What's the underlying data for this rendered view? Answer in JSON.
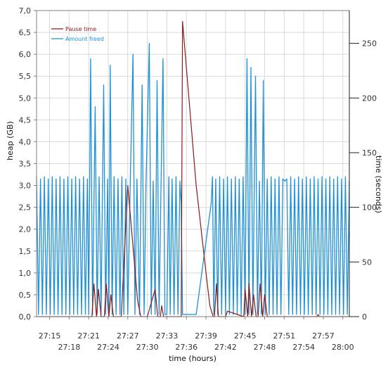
{
  "colors": {
    "pause": "#8b1a1a",
    "freed": "#1e90d6",
    "grid": "#d9d9d9",
    "frame": "#808080"
  },
  "chart_data": {
    "type": "line",
    "title": "",
    "xlabel": "time (hours)",
    "ylabel_left": "heap (GB)",
    "ylabel_right": "time (seconds)",
    "x_ticks_top_row": [
      "27:15",
      "27:21",
      "27:27",
      "27:33",
      "27:39",
      "27:45",
      "27:51",
      "27:57"
    ],
    "x_ticks_bottom_row": [
      "27:18",
      "27:24",
      "27:30",
      "27:36",
      "27:42",
      "27:48",
      "27:54",
      "28:00"
    ],
    "x_range_minutes": [
      1633,
      1681
    ],
    "y_left_ticks": [
      "0,0",
      "0,5",
      "1,0",
      "1,5",
      "2,0",
      "2,5",
      "3,0",
      "3,5",
      "4,0",
      "4,5",
      "5,0",
      "5,5",
      "6,0",
      "6,5",
      "7,0"
    ],
    "y_left_range": [
      0,
      7
    ],
    "y_right_ticks": [
      "0",
      "50",
      "100",
      "150",
      "200",
      "250"
    ],
    "y_right_range": [
      0,
      280
    ],
    "grid": true,
    "legend_position": "top-left",
    "series": [
      {
        "name": "Pause time",
        "axis": "right",
        "points": [
          [
            1633.0,
            0
          ],
          [
            1637.6,
            0
          ],
          [
            1641.5,
            0
          ],
          [
            1641.8,
            30
          ],
          [
            1642.2,
            0
          ],
          [
            1642.5,
            25
          ],
          [
            1642.9,
            0
          ],
          [
            1643.4,
            0
          ],
          [
            1643.7,
            30
          ],
          [
            1644.1,
            0
          ],
          [
            1644.4,
            20
          ],
          [
            1644.8,
            0
          ],
          [
            1646.0,
            0
          ],
          [
            1647.0,
            120
          ],
          [
            1648.5,
            15
          ],
          [
            1649.0,
            0
          ],
          [
            1650.0,
            0
          ],
          [
            1651.2,
            25
          ],
          [
            1651.6,
            0
          ],
          [
            1652.0,
            0
          ],
          [
            1652.2,
            10
          ],
          [
            1652.5,
            0
          ],
          [
            1653.0,
            0
          ],
          [
            1653.5,
            0
          ],
          [
            1655.2,
            0
          ],
          [
            1655.4,
            270
          ],
          [
            1657.5,
            120
          ],
          [
            1659.2,
            30
          ],
          [
            1659.6,
            10
          ],
          [
            1660.1,
            0
          ],
          [
            1660.3,
            0
          ],
          [
            1660.6,
            30
          ],
          [
            1660.9,
            0
          ],
          [
            1662.0,
            0
          ],
          [
            1662.3,
            5
          ],
          [
            1664.8,
            0
          ],
          [
            1665.0,
            25
          ],
          [
            1665.4,
            0
          ],
          [
            1665.6,
            30
          ],
          [
            1666.0,
            0
          ],
          [
            1666.3,
            20
          ],
          [
            1666.7,
            0
          ],
          [
            1667.0,
            0
          ],
          [
            1667.3,
            30
          ],
          [
            1667.7,
            0
          ],
          [
            1668.0,
            20
          ],
          [
            1668.4,
            0
          ],
          [
            1676.0,
            0
          ],
          [
            1676.2,
            2
          ],
          [
            1676.4,
            0
          ],
          [
            1681.0,
            0
          ]
        ]
      },
      {
        "name": "Amount freed",
        "axis": "left",
        "points": [
          [
            1633.0,
            3.2
          ],
          [
            1633.3,
            0.05
          ],
          [
            1633.6,
            3.15
          ],
          [
            1633.9,
            0.05
          ],
          [
            1634.2,
            3.2
          ],
          [
            1634.5,
            0.05
          ],
          [
            1634.8,
            3.15
          ],
          [
            1635.1,
            0.05
          ],
          [
            1635.4,
            3.2
          ],
          [
            1635.7,
            0.05
          ],
          [
            1636.0,
            3.15
          ],
          [
            1636.3,
            0.05
          ],
          [
            1636.6,
            3.2
          ],
          [
            1636.9,
            0.05
          ],
          [
            1637.2,
            3.15
          ],
          [
            1637.5,
            0.05
          ],
          [
            1637.8,
            3.2
          ],
          [
            1638.1,
            0.05
          ],
          [
            1638.4,
            3.15
          ],
          [
            1638.7,
            0.05
          ],
          [
            1639.0,
            3.2
          ],
          [
            1639.3,
            0.05
          ],
          [
            1639.6,
            3.15
          ],
          [
            1639.9,
            0.05
          ],
          [
            1640.2,
            3.2
          ],
          [
            1640.5,
            0.05
          ],
          [
            1640.8,
            3.15
          ],
          [
            1641.0,
            0.05
          ],
          [
            1641.3,
            5.9
          ],
          [
            1641.6,
            0.05
          ],
          [
            1642.0,
            4.8
          ],
          [
            1642.3,
            0.05
          ],
          [
            1642.6,
            3.2
          ],
          [
            1642.9,
            0.05
          ],
          [
            1643.3,
            5.3
          ],
          [
            1643.6,
            0.05
          ],
          [
            1643.9,
            3.15
          ],
          [
            1644.1,
            0.05
          ],
          [
            1644.3,
            5.75
          ],
          [
            1644.6,
            0.05
          ],
          [
            1644.9,
            3.2
          ],
          [
            1645.2,
            0.05
          ],
          [
            1645.5,
            3.15
          ],
          [
            1645.8,
            0.05
          ],
          [
            1646.1,
            3.2
          ],
          [
            1646.4,
            0.05
          ],
          [
            1646.7,
            3.15
          ],
          [
            1647.0,
            0.05
          ],
          [
            1647.4,
            3.2
          ],
          [
            1647.8,
            6.0
          ],
          [
            1648.1,
            0.05
          ],
          [
            1648.4,
            3.15
          ],
          [
            1648.8,
            0.05
          ],
          [
            1649.2,
            5.3
          ],
          [
            1649.5,
            0.05
          ],
          [
            1649.8,
            3.0
          ],
          [
            1650.3,
            6.25
          ],
          [
            1650.6,
            0.05
          ],
          [
            1650.9,
            3.1
          ],
          [
            1651.2,
            0.05
          ],
          [
            1651.5,
            5.4
          ],
          [
            1651.8,
            0.05
          ],
          [
            1652.1,
            3.0
          ],
          [
            1652.4,
            5.9
          ],
          [
            1652.7,
            0.05
          ],
          [
            1653.0,
            0.05
          ],
          [
            1653.3,
            3.2
          ],
          [
            1653.5,
            0.05
          ],
          [
            1653.8,
            3.15
          ],
          [
            1654.1,
            0.05
          ],
          [
            1654.4,
            3.2
          ],
          [
            1654.7,
            0.05
          ],
          [
            1655.0,
            3.1
          ],
          [
            1655.2,
            2.6
          ],
          [
            1655.4,
            0.05
          ],
          [
            1657.5,
            0.05
          ],
          [
            1659.8,
            2.6
          ],
          [
            1660.0,
            3.2
          ],
          [
            1660.2,
            0.05
          ],
          [
            1660.5,
            3.15
          ],
          [
            1660.8,
            0.05
          ],
          [
            1661.1,
            3.2
          ],
          [
            1661.4,
            0.05
          ],
          [
            1661.7,
            3.15
          ],
          [
            1662.0,
            0.05
          ],
          [
            1662.3,
            3.2
          ],
          [
            1662.6,
            0.05
          ],
          [
            1662.9,
            3.15
          ],
          [
            1663.2,
            0.05
          ],
          [
            1663.5,
            3.2
          ],
          [
            1663.8,
            0.05
          ],
          [
            1664.1,
            3.15
          ],
          [
            1664.4,
            0.05
          ],
          [
            1664.7,
            3.2
          ],
          [
            1665.0,
            0.05
          ],
          [
            1665.3,
            5.9
          ],
          [
            1665.6,
            0.05
          ],
          [
            1665.9,
            5.7
          ],
          [
            1666.2,
            0.05
          ],
          [
            1666.6,
            5.5
          ],
          [
            1666.9,
            0.05
          ],
          [
            1667.2,
            3.1
          ],
          [
            1667.5,
            0.05
          ],
          [
            1667.8,
            5.4
          ],
          [
            1668.1,
            0.05
          ],
          [
            1668.4,
            3.15
          ],
          [
            1668.7,
            0.05
          ],
          [
            1669.0,
            3.2
          ],
          [
            1669.3,
            0.05
          ],
          [
            1669.6,
            3.15
          ],
          [
            1669.9,
            0.05
          ],
          [
            1670.2,
            3.2
          ],
          [
            1670.5,
            0.05
          ],
          [
            1670.8,
            3.15
          ],
          [
            1671.1,
            3.1
          ],
          [
            1671.4,
            3.15
          ],
          [
            1671.7,
            0.05
          ],
          [
            1672.0,
            3.2
          ],
          [
            1672.3,
            0.05
          ],
          [
            1672.6,
            3.15
          ],
          [
            1672.9,
            0.05
          ],
          [
            1673.2,
            3.2
          ],
          [
            1673.5,
            0.05
          ],
          [
            1673.8,
            3.15
          ],
          [
            1674.1,
            0.05
          ],
          [
            1674.4,
            3.2
          ],
          [
            1674.7,
            0.05
          ],
          [
            1675.0,
            3.15
          ],
          [
            1675.3,
            0.05
          ],
          [
            1675.6,
            3.2
          ],
          [
            1675.9,
            0.05
          ],
          [
            1676.2,
            3.15
          ],
          [
            1676.5,
            0.05
          ],
          [
            1676.8,
            3.2
          ],
          [
            1677.1,
            0.05
          ],
          [
            1677.4,
            3.15
          ],
          [
            1677.7,
            0.05
          ],
          [
            1678.0,
            3.2
          ],
          [
            1678.3,
            0.05
          ],
          [
            1678.6,
            3.15
          ],
          [
            1678.9,
            0.05
          ],
          [
            1679.2,
            3.2
          ],
          [
            1679.5,
            0.05
          ],
          [
            1679.8,
            3.15
          ],
          [
            1680.1,
            0.05
          ],
          [
            1680.4,
            3.2
          ],
          [
            1680.7,
            0.05
          ],
          [
            1681.0,
            3.1
          ]
        ]
      }
    ]
  }
}
